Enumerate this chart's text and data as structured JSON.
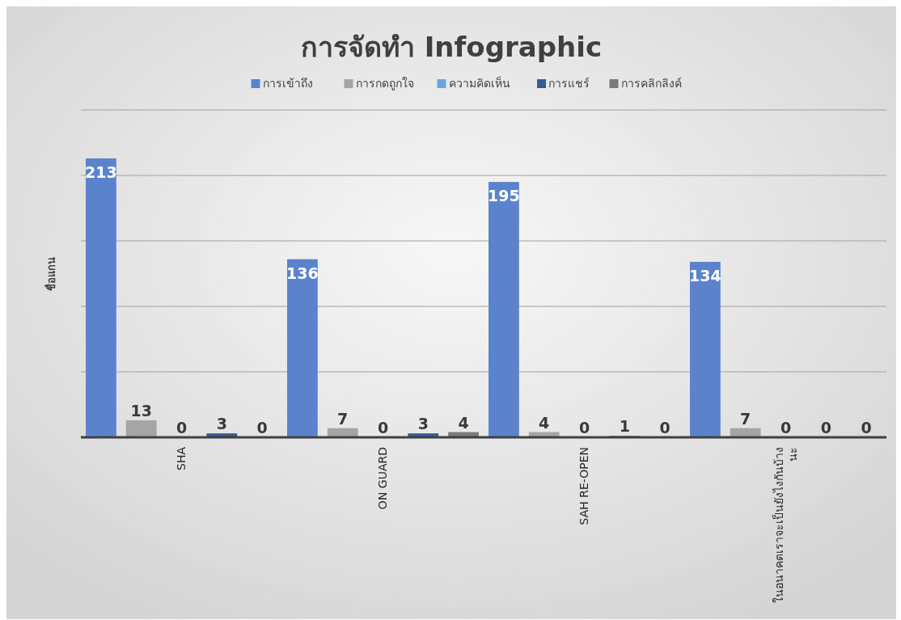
{
  "chart_data": {
    "type": "bar",
    "title": "การจัดทำ Infographic",
    "ylabel": "ชื่อแกน",
    "categories": [
      "SHA",
      "ON GUARD",
      "SAH RE-OPEN",
      "ในอนาคตเราจะเป็นยังไงกันบ้างนะ"
    ],
    "series": [
      {
        "name": "การเข้าถึง",
        "color": "#5b83cc",
        "values": [
          213,
          136,
          195,
          134
        ]
      },
      {
        "name": "การกดถูกใจ",
        "color": "#a5a5a5",
        "values": [
          13,
          7,
          4,
          7
        ]
      },
      {
        "name": "ความคิดเห็น",
        "color": "#6ea5d8",
        "values": [
          0,
          0,
          0,
          0
        ]
      },
      {
        "name": "การแชร์",
        "color": "#3b5a92",
        "values": [
          3,
          3,
          1,
          0
        ]
      },
      {
        "name": "การคลิกลิงค์",
        "color": "#7a7a7a",
        "values": [
          0,
          4,
          0,
          0
        ]
      }
    ],
    "ylim": [
      0,
      250
    ],
    "yticks": [
      {
        "value": 0,
        "label": null
      },
      {
        "value": 50,
        "label": null
      },
      {
        "value": 100,
        "label": null
      },
      {
        "value": 150,
        "label": null
      },
      {
        "value": 200,
        "label": null
      },
      {
        "value": 250,
        "label": null
      }
    ],
    "grid": "y",
    "legend": "top",
    "data_labels": true,
    "tick_labels": "x"
  }
}
